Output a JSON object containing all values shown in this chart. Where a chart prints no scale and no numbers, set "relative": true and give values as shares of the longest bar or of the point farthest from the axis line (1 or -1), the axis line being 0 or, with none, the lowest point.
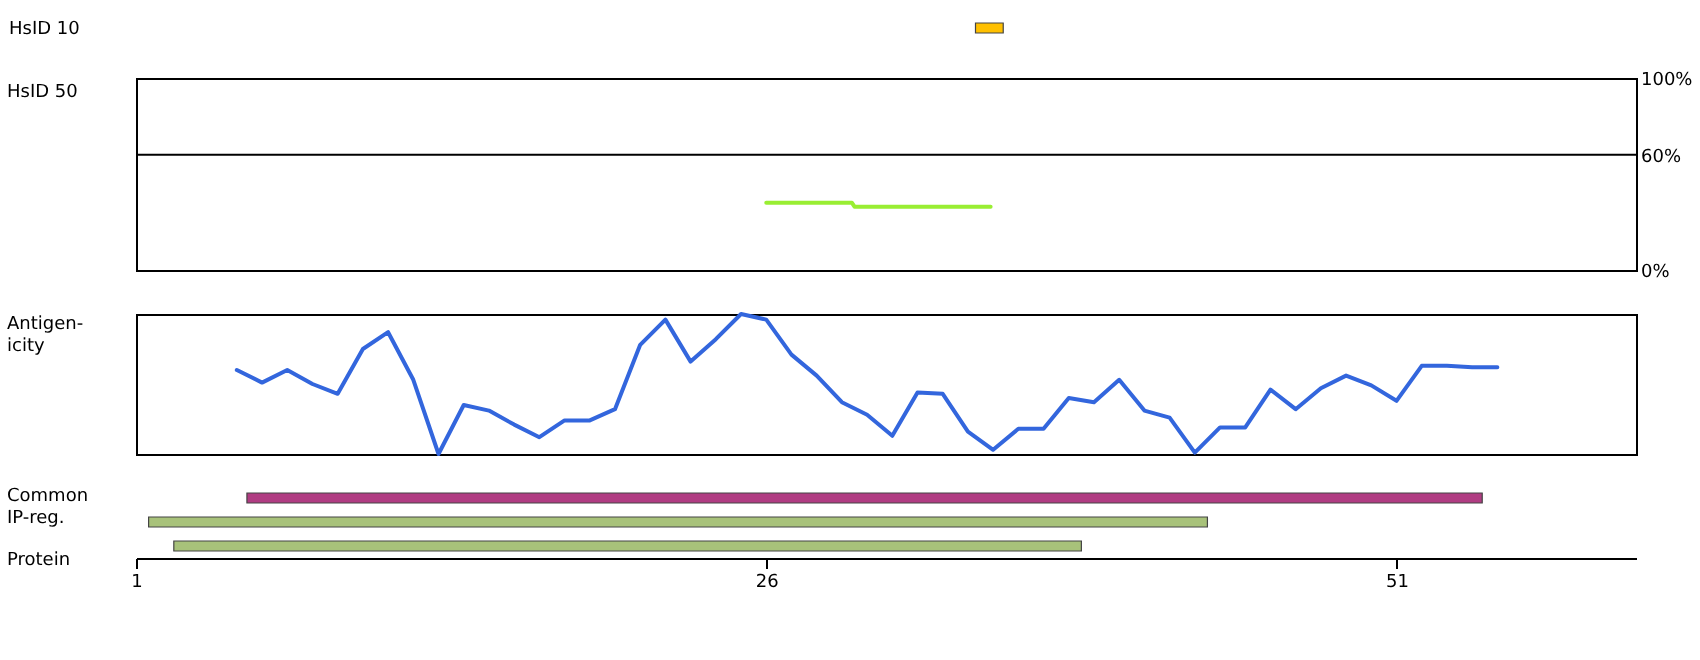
{
  "chart_data": [
    {
      "type": "bar",
      "orientation": "horizontal",
      "categories": [
        "HsID 10"
      ],
      "base": [
        34.3
      ],
      "values": [
        1.1
      ],
      "colors": [
        "#ffc000"
      ],
      "xlim": [
        1,
        60.5
      ],
      "tick_labels": "y"
    },
    {
      "type": "line",
      "ylabel": "HsID 50",
      "series": [
        {
          "color": "#99ee33",
          "x": [
            26,
            29.4,
            29.5,
            34.9
          ],
          "values": [
            35,
            35,
            33,
            33
          ]
        }
      ],
      "xlim": [
        1,
        60.5
      ],
      "ylim": [
        0,
        100
      ],
      "yticks": [
        {
          "value": 0,
          "label": "0%"
        },
        {
          "value": 60,
          "label": "60%"
        },
        {
          "value": 100,
          "label": "100%"
        }
      ],
      "ref_lines": [
        {
          "axis": "y",
          "value": 60,
          "color": "#000000"
        }
      ],
      "tick_labels": "y"
    },
    {
      "type": "line",
      "ylabel": "Antigen-\nicity",
      "relative": true,
      "x": [
        5,
        6,
        7,
        8,
        9,
        10,
        11,
        12,
        13,
        14,
        15,
        16,
        17,
        18,
        19,
        20,
        21,
        22,
        23,
        24,
        25,
        26,
        27,
        28,
        29,
        30,
        31,
        32,
        33,
        34,
        35,
        36,
        37,
        38,
        39,
        40,
        41,
        42,
        43,
        44,
        45,
        46,
        47,
        48,
        49,
        50,
        51,
        52,
        53,
        54,
        55
      ],
      "series": [
        {
          "color": "#3366dd",
          "values": [
            0.6,
            0.51,
            0.6,
            0.5,
            0.43,
            0.75,
            0.87,
            0.53,
            0,
            0.35,
            0.31,
            0.21,
            0.12,
            0.24,
            0.24,
            0.32,
            0.78,
            0.96,
            0.66,
            0.82,
            1,
            0.96,
            0.71,
            0.56,
            0.37,
            0.28,
            0.13,
            0.44,
            0.43,
            0.16,
            0.03,
            0.18,
            0.18,
            0.4,
            0.37,
            0.53,
            0.31,
            0.26,
            0.01,
            0.19,
            0.19,
            0.46,
            0.32,
            0.47,
            0.56,
            0.49,
            0.38,
            0.63,
            0.63,
            0.62,
            0.62
          ]
        }
      ],
      "xlim": [
        1,
        60.5
      ],
      "tick_labels": false
    },
    {
      "type": "bar",
      "orientation": "horizontal",
      "ylabel": "Common\nIP-reg.",
      "xlabel": "Protein",
      "categories": [
        null,
        null,
        null
      ],
      "base": [
        5.4,
        1.5,
        2.5
      ],
      "values": [
        49,
        42,
        36
      ],
      "colors": [
        "#b03c82",
        "#a8c27a",
        "#a8c27a"
      ],
      "xlim": [
        1,
        60.5
      ],
      "xticks": [
        1,
        26,
        51
      ],
      "tick_labels": "x"
    }
  ]
}
